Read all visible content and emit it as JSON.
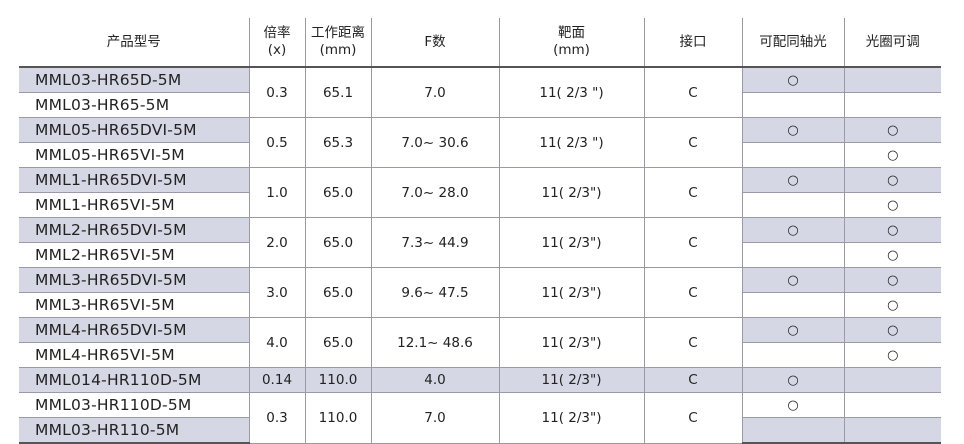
{
  "headers": [
    {
      "line1": "产品型号",
      "line2": ""
    },
    {
      "line1": "倍率",
      "line2": "(x)"
    },
    {
      "line1": "工作距离",
      "line2": "(mm)"
    },
    {
      "line1": "F数",
      "line2": ""
    },
    {
      "line1": "靶面",
      "line2": "(mm)"
    },
    {
      "line1": "接口",
      "line2": ""
    },
    {
      "line1": "可配同轴光",
      "line2": ""
    },
    {
      "line1": "光圈可调",
      "line2": ""
    }
  ],
  "groups": [
    {
      "mag": "0.3",
      "wd": "65.1",
      "f": "7.0",
      "target": "11( 2/3 \")",
      "mount": "C",
      "rows": [
        {
          "model": "MML03-HR65D-5M",
          "coax": "○",
          "iris": ""
        },
        {
          "model": "MML03-HR65-5M",
          "coax": "",
          "iris": ""
        }
      ]
    },
    {
      "mag": "0.5",
      "wd": "65.3",
      "f": "7.0~ 30.6",
      "target": "11( 2/3 \")",
      "mount": "C",
      "rows": [
        {
          "model": "MML05-HR65DVI-5M",
          "coax": "○",
          "iris": "○"
        },
        {
          "model": "MML05-HR65VI-5M",
          "coax": "",
          "iris": "○"
        }
      ]
    },
    {
      "mag": "1.0",
      "wd": "65.0",
      "f": "7.0~ 28.0",
      "target": "11( 2/3\")",
      "mount": "C",
      "rows": [
        {
          "model": "MML1-HR65DVI-5M",
          "coax": "○",
          "iris": "○"
        },
        {
          "model": "MML1-HR65VI-5M",
          "coax": "",
          "iris": "○"
        }
      ]
    },
    {
      "mag": "2.0",
      "wd": "65.0",
      "f": "7.3~ 44.9",
      "target": "11( 2/3\")",
      "mount": "C",
      "rows": [
        {
          "model": "MML2-HR65DVI-5M",
          "coax": "○",
          "iris": "○"
        },
        {
          "model": "MML2-HR65VI-5M",
          "coax": "",
          "iris": "○"
        }
      ]
    },
    {
      "mag": "3.0",
      "wd": "65.0",
      "f": "9.6~ 47.5",
      "target": "11( 2/3\")",
      "mount": "C",
      "rows": [
        {
          "model": "MML3-HR65DVI-5M",
          "coax": "○",
          "iris": "○"
        },
        {
          "model": "MML3-HR65VI-5M",
          "coax": "",
          "iris": "○"
        }
      ]
    },
    {
      "mag": "4.0",
      "wd": "65.0",
      "f": "12.1~ 48.6",
      "target": "11( 2/3\")",
      "mount": "C",
      "rows": [
        {
          "model": "MML4-HR65DVI-5M",
          "coax": "○",
          "iris": "○"
        },
        {
          "model": "MML4-HR65VI-5M",
          "coax": "",
          "iris": "○"
        }
      ]
    },
    {
      "mag": "0.14",
      "wd": "110.0",
      "f": "4.0",
      "target": "11( 2/3\")",
      "mount": "C",
      "rows": [
        {
          "model": "MML014-HR110D-5M",
          "coax": "○",
          "iris": ""
        }
      ]
    },
    {
      "mag": "0.3",
      "wd": "110.0",
      "f": "7.0",
      "target": "11( 2/3\")",
      "mount": "C",
      "rows": [
        {
          "model": "MML03-HR110D-5M",
          "coax": "○",
          "iris": ""
        },
        {
          "model": "MML03-HR110-5M",
          "coax": "",
          "iris": ""
        }
      ]
    }
  ]
}
